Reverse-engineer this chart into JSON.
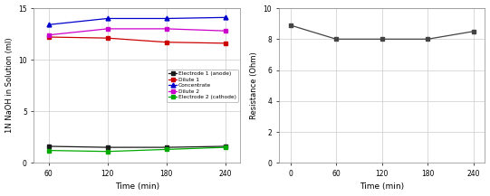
{
  "left": {
    "time": [
      60,
      120,
      180,
      240
    ],
    "electrode1_anode": [
      1.6,
      1.5,
      1.5,
      1.6
    ],
    "dilute1": [
      12.2,
      12.1,
      11.7,
      11.6
    ],
    "concentrate": [
      13.4,
      14.0,
      14.0,
      14.1
    ],
    "dilute2": [
      12.4,
      13.0,
      13.0,
      12.8
    ],
    "electrode2_cathode": [
      1.2,
      1.1,
      1.3,
      1.5
    ],
    "ylabel": "1N NaOH in Solution (ml)",
    "xlabel": "Time (min)",
    "ylim": [
      0,
      15
    ],
    "xlim": [
      45,
      255
    ],
    "xticks": [
      60,
      120,
      180,
      240
    ],
    "yticks": [
      0,
      5,
      10,
      15
    ],
    "colors": {
      "electrode1_anode": "#1a1a1a",
      "dilute1": "#cc0000",
      "concentrate": "#0000cc",
      "dilute2": "#cc00cc",
      "electrode2_cathode": "#00aa00"
    },
    "legend_labels": [
      "Electrode 1 (anode)",
      "Dilute 1",
      "Concentrate",
      "Dilute 2",
      "Electrode 2 (cathode)"
    ]
  },
  "right": {
    "time": [
      0,
      60,
      120,
      180,
      240
    ],
    "resistance": [
      8.9,
      8.0,
      8.0,
      8.0,
      8.5
    ],
    "ylabel": "Resistance (Ohm)",
    "xlabel": "Time (min)",
    "ylim": [
      0,
      10
    ],
    "xlim": [
      -15,
      255
    ],
    "xticks": [
      0,
      60,
      120,
      180,
      240
    ],
    "yticks": [
      0,
      2,
      4,
      6,
      8,
      10
    ],
    "color": "#444444"
  }
}
